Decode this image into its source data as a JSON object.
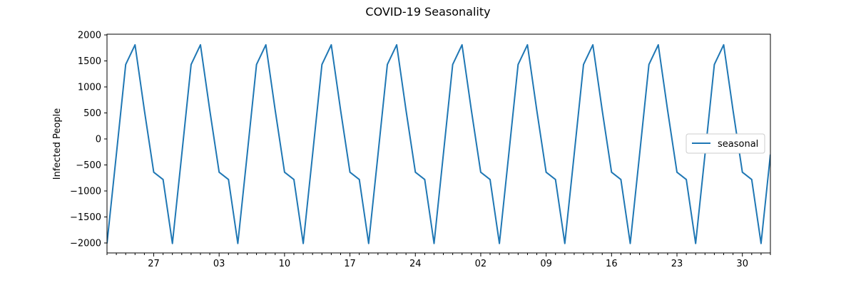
{
  "chart_data": {
    "type": "line",
    "title": "COVID-19 Seasonality",
    "xlabel": "",
    "ylabel": "Infected People",
    "ylim": [
      -2200,
      2000
    ],
    "y_ticks": [
      2000,
      1500,
      1000,
      500,
      0,
      -500,
      -1000,
      -1500,
      -2000
    ],
    "x_ticks": [
      {
        "day": 5,
        "label": "27"
      },
      {
        "day": 12,
        "label": "03"
      },
      {
        "day": 19,
        "label": "10"
      },
      {
        "day": 26,
        "label": "17"
      },
      {
        "day": 33,
        "label": "24"
      },
      {
        "day": 40,
        "label": "02"
      },
      {
        "day": 47,
        "label": "09"
      },
      {
        "day": 54,
        "label": "16"
      },
      {
        "day": 61,
        "label": "23"
      },
      {
        "day": 68,
        "label": "30"
      }
    ],
    "x_range": [
      0,
      71
    ],
    "legend": {
      "position": "center-right"
    },
    "color": "#1f77b4",
    "series": [
      {
        "name": "seasonal",
        "weekly_pattern": [
          -2010,
          -300,
          1430,
          1810,
          550,
          -640,
          -780
        ],
        "points": 72
      }
    ]
  }
}
